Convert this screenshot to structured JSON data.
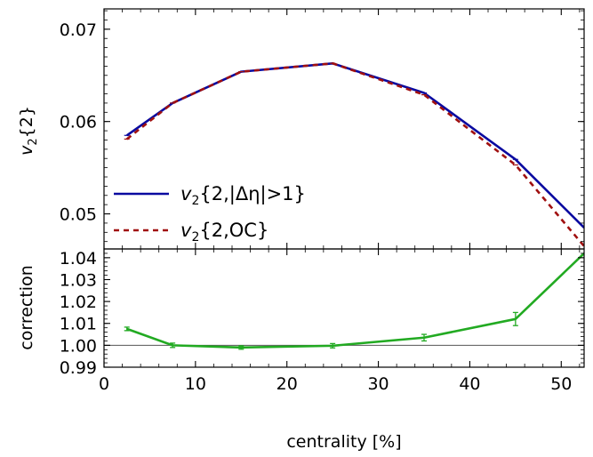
{
  "chart_data": [
    {
      "type": "line",
      "ylabel_main": "v",
      "ylabel_sub": "2",
      "ylabel_rest": "{2}",
      "xlim": [
        0,
        52.5
      ],
      "ylim": [
        0.0462,
        0.0722
      ],
      "yticks": [
        0.05,
        0.06,
        0.07
      ],
      "ytick_labels": [
        "0.05",
        "0.06",
        "0.07"
      ],
      "grid": false,
      "legend_position": "lower-left",
      "series": [
        {
          "name_main": "v",
          "name_sub": "2",
          "name_rest": "{2,|Δη|>1}",
          "color": "#0a0aa0",
          "style": "solid",
          "x": [
            2.5,
            7.5,
            15,
            25,
            35,
            45,
            52.5
          ],
          "y": [
            0.0585,
            0.062,
            0.0654,
            0.0663,
            0.0631,
            0.0559,
            0.0485
          ]
        },
        {
          "name_main": "v",
          "name_sub": "2",
          "name_rest": "{2,OC}",
          "color": "#a01010",
          "style": "dashed",
          "x": [
            2.5,
            7.5,
            15,
            25,
            35,
            45,
            52.5
          ],
          "y": [
            0.0581,
            0.062,
            0.0654,
            0.0663,
            0.0629,
            0.0553,
            0.0465
          ]
        }
      ]
    },
    {
      "type": "line",
      "ylabel": "correction",
      "xlabel": "centrality [%]",
      "xlim": [
        0,
        52.5
      ],
      "ylim": [
        0.99,
        1.044
      ],
      "xticks": [
        0,
        10,
        20,
        30,
        40,
        50
      ],
      "xtick_labels": [
        "0",
        "10",
        "20",
        "30",
        "40",
        "50"
      ],
      "yticks": [
        0.99,
        1.0,
        1.01,
        1.02,
        1.03,
        1.04
      ],
      "ytick_labels": [
        "0.99",
        "1.00",
        "1.01",
        "1.02",
        "1.03",
        "1.04"
      ],
      "reference_line": 1.0,
      "grid": false,
      "series": [
        {
          "color": "#22aa22",
          "style": "solid",
          "x": [
            2.5,
            7.5,
            15,
            25,
            35,
            45,
            52.5
          ],
          "y": [
            1.0075,
            1.0,
            0.999,
            0.9998,
            1.0035,
            1.012,
            1.042
          ],
          "err": [
            0.0008,
            0.001,
            0.0008,
            0.001,
            0.0015,
            0.003,
            0
          ]
        }
      ]
    }
  ]
}
